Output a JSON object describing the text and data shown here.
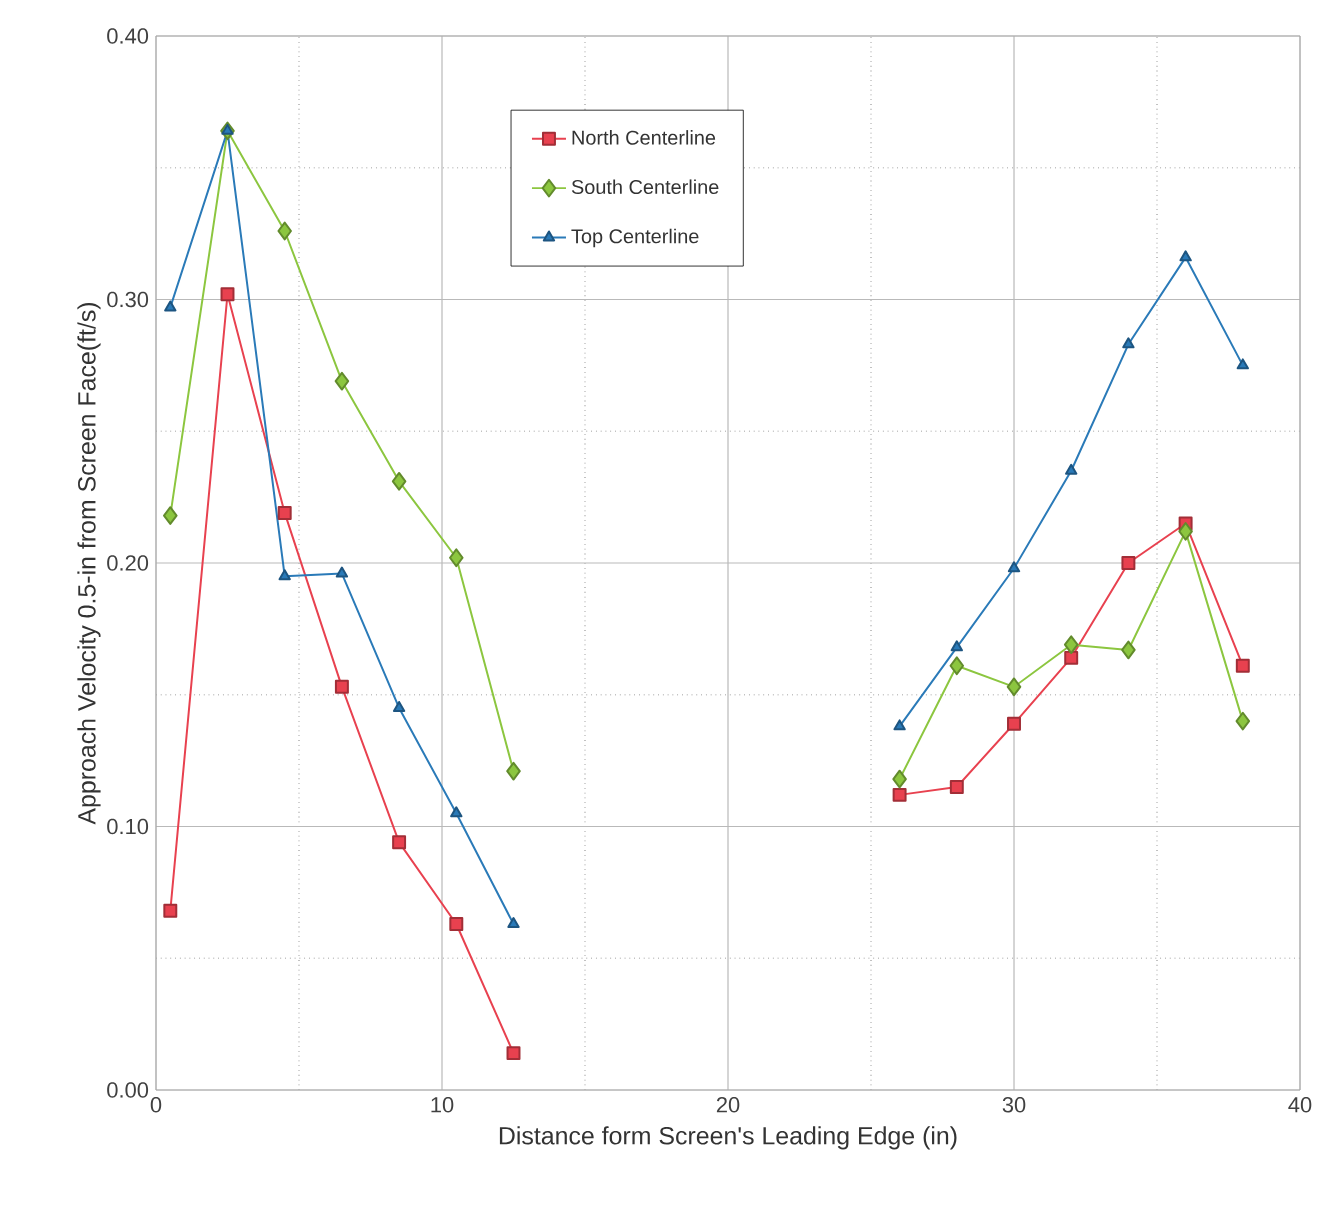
{
  "chart_data": {
    "type": "line",
    "xlabel": "Distance form Screen's Leading Edge (in)",
    "ylabel": "Approach Velocity 0.5-in from Screen Face(ft/s)",
    "x": [
      0.5,
      2.5,
      4.5,
      6.5,
      8.5,
      10.5,
      12.5,
      20,
      26,
      28,
      30,
      32,
      34,
      36,
      38
    ],
    "series": [
      {
        "name": "North Centerline",
        "color": "#e8414f",
        "marker": "square",
        "values": [
          0.068,
          0.302,
          0.219,
          0.153,
          0.094,
          0.063,
          0.014,
          null,
          0.112,
          0.115,
          0.139,
          0.164,
          0.2,
          0.215,
          0.161
        ]
      },
      {
        "name": "South Centerline",
        "color": "#8cc63f",
        "marker": "diamond",
        "values": [
          0.218,
          0.364,
          0.326,
          0.269,
          0.231,
          0.202,
          0.121,
          null,
          0.118,
          0.161,
          0.153,
          0.169,
          0.167,
          0.212,
          0.14
        ]
      },
      {
        "name": "Top Centerline",
        "color": "#2a7ab8",
        "marker": "triangle",
        "values": [
          0.297,
          0.364,
          0.195,
          0.196,
          0.145,
          0.105,
          0.063,
          null,
          0.138,
          0.168,
          0.198,
          0.235,
          0.283,
          0.316,
          0.275
        ]
      }
    ],
    "xlim": [
      0,
      40
    ],
    "xticks": [
      0,
      {
        "value": 5,
        "label": null
      },
      10,
      {
        "value": 15,
        "label": null
      },
      20,
      {
        "value": 25,
        "label": null
      },
      30,
      {
        "value": 35,
        "label": null
      },
      40
    ],
    "ylim": [
      0,
      0.4
    ],
    "yticks": [
      {
        "value": 0,
        "label": "0.00"
      },
      {
        "value": 0.05,
        "label": null
      },
      {
        "value": 0.1,
        "label": "0.10"
      },
      {
        "value": 0.15,
        "label": null
      },
      {
        "value": 0.2,
        "label": "0.20"
      },
      {
        "value": 0.25,
        "label": null
      },
      {
        "value": 0.3,
        "label": "0.30"
      },
      {
        "value": 0.35,
        "label": null
      },
      {
        "value": 0.4,
        "label": "0.40"
      }
    ],
    "grid": true,
    "legend": "top",
    "line_style": "solid"
  }
}
